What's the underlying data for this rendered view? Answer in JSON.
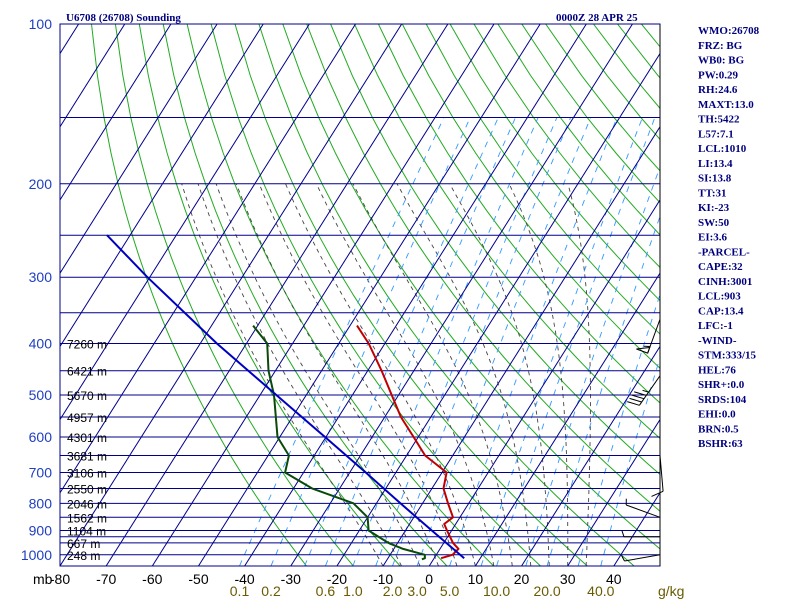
{
  "header": {
    "station_title": "U6708 (26708) Sounding",
    "valid_time": "0000Z 28 APR 25"
  },
  "indices": [
    "WMO:26708",
    "FRZ: BG",
    "WB0: BG",
    "PW:0.29",
    "RH:24.6",
    "MAXT:13.0",
    "TH:5422",
    "L57:7.1",
    "LCL:1010",
    "LI:13.4",
    "SI:13.8",
    "TT:31",
    "KI:-23",
    "SW:50",
    "EI:3.6",
    "-PARCEL-",
    "CAPE:32",
    "CINH:3001",
    "LCL:903",
    "CAP:13.4",
    "LFC:-1",
    "-WIND-",
    "STM:333/15",
    "HEL:76",
    "SHR+:0.0",
    "SRDS:104",
    "EHI:0.0",
    "BRN:0.5",
    "BSHR:63"
  ],
  "colors": {
    "temperature": "#c00000",
    "dewpoint": "#0a4a0a",
    "parcel": "#0000c0",
    "isobars_isotherms": "#00008b",
    "dry_adiabats": "#22aa22",
    "moist_adiabats": "#444444",
    "mixing_ratio": "#3399ff",
    "pressure_labels": "#1f3fbf",
    "index_text": "#00007f"
  },
  "chart_data": {
    "type": "skew-t log-p sounding",
    "title": "U6708 (26708) Sounding",
    "subtitle": "0000Z 28 APR 25",
    "x_unit_label": "mb",
    "pressure_ticks": [
      "100",
      "200",
      "300",
      "400",
      "500",
      "600",
      "700",
      "800",
      "900",
      "1000"
    ],
    "pressure_levels_hpa": [
      100,
      150,
      200,
      250,
      300,
      350,
      400,
      450,
      500,
      550,
      600,
      650,
      700,
      750,
      800,
      850,
      900,
      925,
      950,
      1000
    ],
    "temperature_ticks": [
      "-80",
      "-70",
      "-60",
      "-50",
      "-40",
      "-30",
      "-20",
      "-10",
      "0",
      "10",
      "20",
      "30",
      "40"
    ],
    "mixing_ratio_ticks": [
      "0.1",
      "0.2",
      "0.6",
      "1.0",
      "2.0",
      "3.0",
      "5.0",
      "10.0",
      "20.0",
      "40.0"
    ],
    "mixing_ratio_unit": "g/kg",
    "ylim": [
      1050,
      100
    ],
    "xlim_at_1050mb": [
      -80,
      50
    ],
    "skew_deg_per_decade": 72.5,
    "height_labels": [
      {
        "p": 400,
        "text": "7260 m"
      },
      {
        "p": 450,
        "text": "6421 m"
      },
      {
        "p": 500,
        "text": "5670 m"
      },
      {
        "p": 550,
        "text": "4957 m"
      },
      {
        "p": 600,
        "text": "4301 m"
      },
      {
        "p": 650,
        "text": "3681 m"
      },
      {
        "p": 700,
        "text": "3106 m"
      },
      {
        "p": 750,
        "text": "2550 m"
      },
      {
        "p": 800,
        "text": "2046 m"
      },
      {
        "p": 850,
        "text": "1562 m"
      },
      {
        "p": 900,
        "text": "1104 m"
      },
      {
        "p": 950,
        "text": "667 m"
      },
      {
        "p": 1000,
        "text": "248 m"
      }
    ],
    "series": [
      {
        "key": "temperature",
        "points": [
          [
            1015,
            1.5
          ],
          [
            1000,
            3.5
          ],
          [
            975,
            4.0
          ],
          [
            950,
            2.0
          ],
          [
            900,
            -1.0
          ],
          [
            875,
            -2.5
          ],
          [
            850,
            -1.5
          ],
          [
            800,
            -4.5
          ],
          [
            750,
            -7.5
          ],
          [
            700,
            -9.0
          ],
          [
            650,
            -16.0
          ],
          [
            600,
            -21.0
          ],
          [
            550,
            -26.5
          ],
          [
            500,
            -31.5
          ],
          [
            450,
            -37.0
          ],
          [
            400,
            -43.5
          ],
          [
            370,
            -48.5
          ]
        ]
      },
      {
        "key": "dewpoint",
        "points": [
          [
            1020,
            -2.5
          ],
          [
            1015,
            -2.0
          ],
          [
            1000,
            -2.5
          ],
          [
            975,
            -8.0
          ],
          [
            950,
            -12.0
          ],
          [
            900,
            -18.0
          ],
          [
            850,
            -20.0
          ],
          [
            800,
            -25.0
          ],
          [
            750,
            -36.0
          ],
          [
            700,
            -44.0
          ],
          [
            650,
            -45.5
          ],
          [
            600,
            -50.5
          ],
          [
            500,
            -57.0
          ],
          [
            450,
            -61.5
          ],
          [
            400,
            -65.5
          ],
          [
            370,
            -71.0
          ]
        ]
      },
      {
        "key": "parcel",
        "points": [
          [
            1015,
            6.5
          ],
          [
            900,
            -4.3
          ],
          [
            800,
            -14.8
          ],
          [
            700,
            -26.5
          ],
          [
            600,
            -40.2
          ],
          [
            500,
            -56.5
          ],
          [
            400,
            -76.4
          ],
          [
            300,
            -100.5
          ],
          [
            250,
            -115.0
          ]
        ]
      }
    ],
    "wind_barbs": [
      {
        "p": 360,
        "dir": 200,
        "spd": 55
      },
      {
        "p": 460,
        "dir": 215,
        "spd": 45
      },
      {
        "p": 650,
        "dir": 175,
        "spd": 10
      },
      {
        "p": 850,
        "dir": 290,
        "spd": 5
      },
      {
        "p": 925,
        "dir": 270,
        "spd": 5
      },
      {
        "p": 1000,
        "dir": 260,
        "spd": 5
      }
    ],
    "grid": true,
    "legend": "none"
  }
}
